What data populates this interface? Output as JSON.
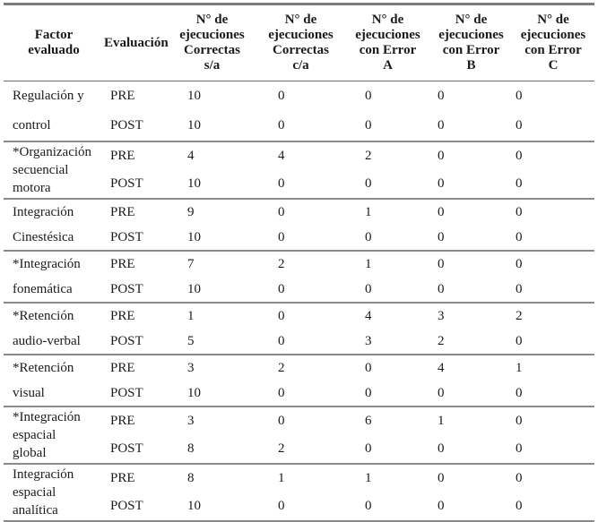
{
  "table": {
    "columns": [
      {
        "lines": [
          "Factor",
          "evaluado"
        ]
      },
      {
        "lines": [
          "Evaluación"
        ]
      },
      {
        "lines": [
          "N° de",
          "ejecuciones",
          "Correctas",
          "s/a"
        ]
      },
      {
        "lines": [
          "N° de",
          "ejecuciones",
          "Correctas",
          "c/a"
        ]
      },
      {
        "lines": [
          "N° de",
          "ejecuciones",
          "con Error",
          "A"
        ]
      },
      {
        "lines": [
          "N° de",
          "ejecuciones",
          "con Error",
          "B"
        ]
      },
      {
        "lines": [
          "N° de",
          "ejecuciones",
          "con Error",
          "C"
        ]
      }
    ],
    "groups": [
      {
        "factor": [
          "Regulación y",
          "control"
        ],
        "rows": [
          {
            "eval": "PRE",
            "values": [
              "10",
              "0",
              "0",
              "0",
              "0"
            ]
          },
          {
            "eval": "POST",
            "values": [
              "10",
              "0",
              "0",
              "0",
              "0"
            ]
          }
        ]
      },
      {
        "factor": [
          "*Organización",
          "secuencial",
          "motora"
        ],
        "rows": [
          {
            "eval": "PRE",
            "values": [
              "4",
              "4",
              "2",
              "0",
              "0"
            ]
          },
          {
            "eval": "POST",
            "values": [
              "10",
              "0",
              "0",
              "0",
              "0"
            ]
          }
        ]
      },
      {
        "factor": [
          "Integración",
          "Cinestésica"
        ],
        "rows": [
          {
            "eval": "PRE",
            "values": [
              "9",
              "0",
              "1",
              "0",
              "0"
            ]
          },
          {
            "eval": "POST",
            "values": [
              "10",
              "0",
              "0",
              "0",
              "0"
            ]
          }
        ]
      },
      {
        "factor": [
          "*Integración",
          "fonemática"
        ],
        "rows": [
          {
            "eval": "PRE",
            "values": [
              "7",
              "2",
              "1",
              "0",
              "0"
            ]
          },
          {
            "eval": "POST",
            "values": [
              "10",
              "0",
              "0",
              "0",
              "0"
            ]
          }
        ]
      },
      {
        "factor": [
          "*Retención",
          "audio-verbal"
        ],
        "rows": [
          {
            "eval": "PRE",
            "values": [
              "1",
              "0",
              "4",
              "3",
              "2"
            ]
          },
          {
            "eval": "POST",
            "values": [
              "5",
              "0",
              "3",
              "2",
              "0"
            ]
          }
        ]
      },
      {
        "factor": [
          "*Retención",
          "visual"
        ],
        "rows": [
          {
            "eval": "PRE",
            "values": [
              "3",
              "2",
              "0",
              "4",
              "1"
            ]
          },
          {
            "eval": "POST",
            "values": [
              "10",
              "0",
              "0",
              "0",
              "0"
            ]
          }
        ]
      },
      {
        "factor": [
          "*Integración",
          "espacial",
          "global"
        ],
        "rows": [
          {
            "eval": "PRE",
            "values": [
              "3",
              "0",
              "6",
              "1",
              "0"
            ]
          },
          {
            "eval": "POST",
            "values": [
              "8",
              "2",
              "0",
              "0",
              "0"
            ]
          }
        ]
      },
      {
        "factor": [
          "Integración",
          "espacial",
          "analítica"
        ],
        "rows": [
          {
            "eval": "PRE",
            "values": [
              "8",
              "1",
              "1",
              "0",
              "0"
            ]
          },
          {
            "eval": "POST",
            "values": [
              "10",
              "0",
              "0",
              "0",
              "0"
            ]
          }
        ]
      }
    ]
  }
}
